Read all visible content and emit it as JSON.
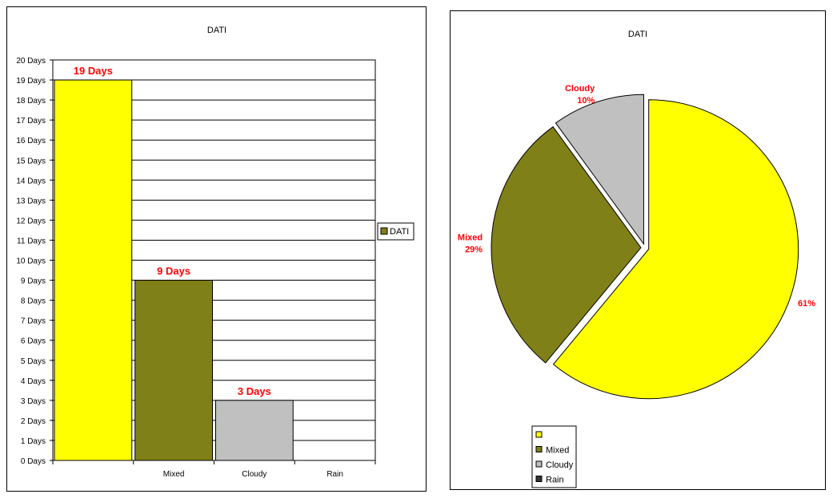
{
  "chart_data": [
    {
      "type": "bar",
      "title": "DATI",
      "categories": [
        "",
        "Mixed",
        "Cloudy",
        "Rain"
      ],
      "series": [
        {
          "name": "DATI",
          "values": [
            19,
            9,
            3,
            0
          ]
        }
      ],
      "value_suffix": " Days",
      "data_labels": [
        "19 Days",
        "9 Days",
        "3 Days",
        ""
      ],
      "ylim": [
        0,
        20
      ],
      "y_ticks": [
        "0 Days",
        "1 Days",
        "2 Days",
        "3 Days",
        "4 Days",
        "5 Days",
        "6 Days",
        "7 Days",
        "8 Days",
        "9 Days",
        "10 Days",
        "11 Days",
        "12 Days",
        "13 Days",
        "14 Days",
        "15 Days",
        "16 Days",
        "17 Days",
        "18 Days",
        "19 Days",
        "20 Days"
      ],
      "colors": [
        "#ffff00",
        "#808018",
        "#c0c0c0",
        "#333333"
      ],
      "legend": {
        "position": "right",
        "entries": [
          "DATI"
        ],
        "swatch_color": "#808018"
      },
      "grid": true
    },
    {
      "type": "pie",
      "title": "DATI",
      "slices": [
        {
          "label": "",
          "value": 61,
          "color": "#ffff00",
          "data_label": "61%"
        },
        {
          "label": "Mixed",
          "value": 29,
          "color": "#808018",
          "data_label": "Mixed\n29%"
        },
        {
          "label": "Cloudy",
          "value": 10,
          "color": "#c0c0c0",
          "data_label": "Cloudy\n10%"
        },
        {
          "label": "Rain",
          "value": 0,
          "color": "#333333",
          "data_label": ""
        }
      ],
      "legend": {
        "position": "bottom-left",
        "entries": [
          "",
          "Mixed",
          "Cloudy",
          "Rain"
        ]
      }
    }
  ]
}
